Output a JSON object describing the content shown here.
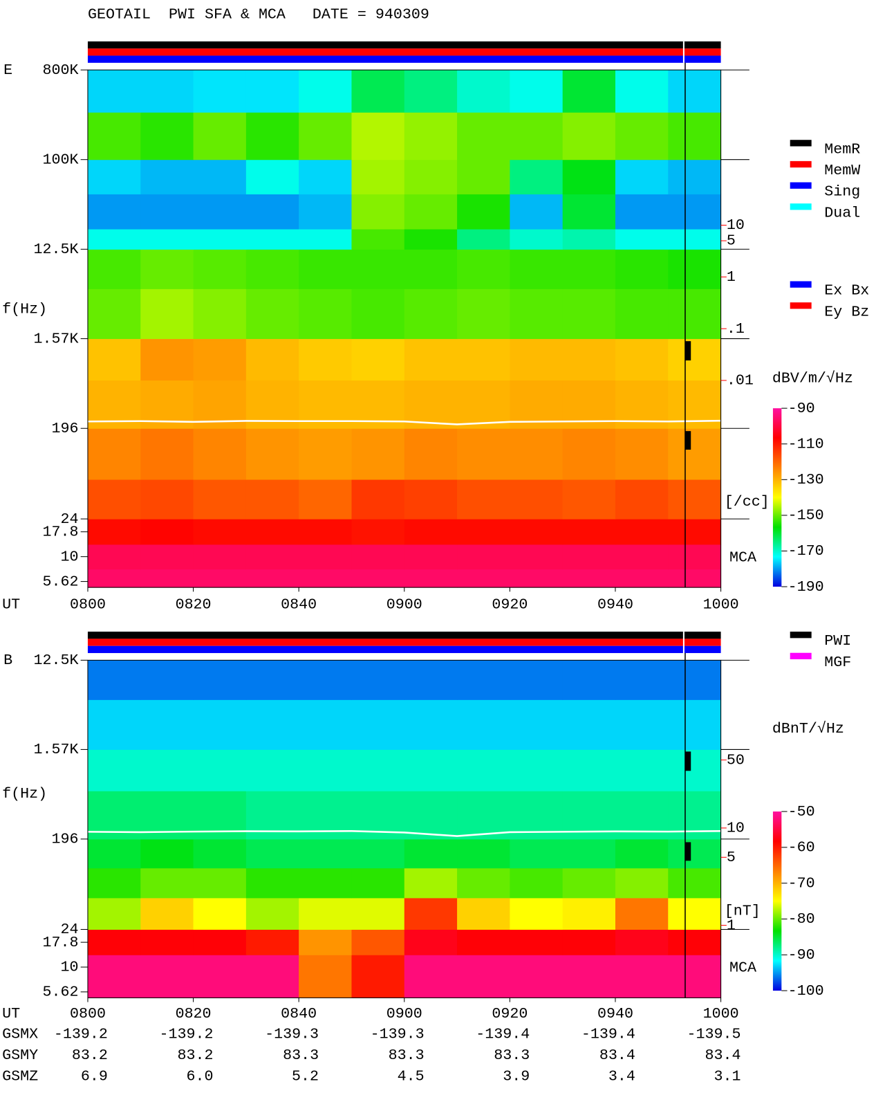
{
  "title": "GEOTAIL  PWI SFA & MCA   DATE = 940309",
  "chart_data": [
    {
      "type": "heatmap",
      "panel_label": "E",
      "ylabel": "f(Hz)",
      "xlabel": "UT",
      "log_y": true,
      "ylim": [
        4.9,
        800000
      ],
      "yticks": [
        {
          "value": 800000,
          "label": "800K"
        },
        {
          "value": 100000,
          "label": "100K"
        },
        {
          "value": 12500,
          "label": "12.5K"
        },
        {
          "value": 1570,
          "label": "1.57K"
        },
        196,
        24,
        17.8,
        10,
        5.62
      ],
      "xlim": [
        480,
        600
      ],
      "xticks": [
        {
          "value": 480,
          "label": "0800"
        },
        {
          "value": 500,
          "label": "0820"
        },
        {
          "value": 520,
          "label": "0840"
        },
        {
          "value": 540,
          "label": "0900"
        },
        {
          "value": 560,
          "label": "0920"
        },
        {
          "value": 580,
          "label": "0940"
        },
        {
          "value": 600,
          "label": "1000"
        }
      ],
      "x_bins": [
        480,
        490,
        500,
        510,
        520,
        530,
        540,
        550,
        560,
        570,
        580,
        590,
        600
      ],
      "y_bins": [
        4.9,
        7.5,
        13.3,
        24,
        60,
        196,
        600,
        1570,
        5000,
        12500,
        20000,
        45000,
        100000,
        300000,
        800000
      ],
      "z": [
        [
          -96,
          -96,
          -96,
          -96,
          -96,
          -96,
          -96,
          -96,
          -96,
          -96,
          -96,
          -96
        ],
        [
          -98,
          -98,
          -98,
          -98,
          -98,
          -98,
          -98,
          -98,
          -98,
          -98,
          -98,
          -98
        ],
        [
          -108,
          -107,
          -108,
          -108,
          -108,
          -109,
          -108,
          -108,
          -108,
          -108,
          -108,
          -108
        ],
        [
          -117,
          -116,
          -118,
          -118,
          -120,
          -114,
          -115,
          -117,
          -117,
          -118,
          -116,
          -118
        ],
        [
          -124,
          -122,
          -124,
          -126,
          -127,
          -126,
          -124,
          -125,
          -125,
          -124,
          -125,
          -127
        ],
        [
          -130,
          -129,
          -128,
          -130,
          -131,
          -131,
          -130,
          -130,
          -129,
          -129,
          -130,
          -131
        ],
        [
          -132,
          -126,
          -127,
          -131,
          -133,
          -134,
          -132,
          -132,
          -131,
          -131,
          -132,
          -134
        ],
        [
          -150,
          -146,
          -148,
          -150,
          -151,
          -152,
          -151,
          -150,
          -151,
          -151,
          -152,
          -152
        ],
        [
          -152,
          -150,
          -151,
          -152,
          -153,
          -153,
          -153,
          -152,
          -153,
          -153,
          -154,
          -155
        ],
        [
          -172,
          -172,
          -172,
          -172,
          -172,
          -152,
          -155,
          -165,
          -170,
          -168,
          -172,
          -172
        ],
        [
          -180,
          -180,
          -180,
          -180,
          -178,
          -148,
          -150,
          -155,
          -178,
          -160,
          -180,
          -180
        ],
        [
          -176,
          -178,
          -178,
          -172,
          -176,
          -146,
          -148,
          -150,
          -165,
          -158,
          -176,
          -178
        ],
        [
          -152,
          -154,
          -150,
          -154,
          -150,
          -145,
          -147,
          -150,
          -150,
          -148,
          -150,
          -152
        ],
        [
          -176,
          -176,
          -175,
          -175,
          -172,
          -162,
          -165,
          -170,
          -172,
          -160,
          -172,
          -176
        ]
      ],
      "zlim": [
        -190,
        -90
      ],
      "zticks": [
        -90,
        -110,
        -130,
        -150,
        -170,
        -190
      ],
      "colorbar_label": "dBV/m/√Hz",
      "colormap": [
        "#0000e0",
        "#00ffff",
        "#00e000",
        "#ffff00",
        "#ff8000",
        "#ff0000",
        "#ff10a0"
      ],
      "line": {
        "x": [
          480,
          490,
          500,
          510,
          520,
          530,
          540,
          550,
          560,
          570,
          580,
          590,
          600
        ],
        "values": [
          230,
          232,
          228,
          233,
          232,
          232,
          230,
          215,
          228,
          230,
          232,
          230,
          234
        ],
        "color": "#ffffff"
      },
      "y2lim": [
        1e-06,
        10000
      ],
      "y2ticks": [
        10,
        5,
        1,
        {
          "value": 0.1,
          "label": ".1"
        },
        {
          "value": 0.01,
          "label": ".01"
        }
      ],
      "y2label": "[/cc]",
      "y2color": "#ff0000",
      "mca_label": "MCA",
      "legend": [
        [
          {
            "name": "MemR",
            "color": "#000000"
          },
          {
            "name": "MemW",
            "color": "#ff0000"
          },
          {
            "name": "Sing",
            "color": "#0000ff"
          },
          {
            "name": "Dual",
            "color": "#00ffff"
          }
        ],
        [
          {
            "name": "Ex Bx",
            "color": "#0000ff"
          },
          {
            "name": "Ey Bz",
            "color": "#ff0000"
          }
        ]
      ]
    },
    {
      "type": "heatmap",
      "panel_label": "B",
      "ylabel": "f(Hz)",
      "xlabel": "UT",
      "log_y": true,
      "ylim": [
        4.9,
        12500
      ],
      "yticks": [
        {
          "value": 12500,
          "label": "12.5K"
        },
        {
          "value": 1570,
          "label": "1.57K"
        },
        196,
        24,
        17.8,
        10,
        5.62
      ],
      "xlim": [
        480,
        600
      ],
      "xticks": [
        {
          "value": 480,
          "label": "0800"
        },
        {
          "value": 500,
          "label": "0820"
        },
        {
          "value": 520,
          "label": "0840"
        },
        {
          "value": 540,
          "label": "0900"
        },
        {
          "value": 560,
          "label": "0920"
        },
        {
          "value": 580,
          "label": "0940"
        },
        {
          "value": 600,
          "label": "1000"
        }
      ],
      "x_bins": [
        480,
        490,
        500,
        510,
        520,
        530,
        540,
        550,
        560,
        570,
        580,
        590,
        600
      ],
      "y_bins": [
        4.9,
        13.3,
        24,
        50,
        100,
        196,
        600,
        1570,
        5000,
        12500
      ],
      "z": [
        [
          -52,
          -52,
          -52,
          -52,
          -66,
          -60,
          -52,
          -52,
          -52,
          -52,
          -52,
          -52
        ],
        [
          -58,
          -58,
          -58,
          -60,
          -68,
          -64,
          -57,
          -58,
          -58,
          -58,
          -57,
          -58
        ],
        [
          -78,
          -72,
          -75,
          -78,
          -76,
          -76,
          -62,
          -72,
          -75,
          -74,
          -66,
          -75
        ],
        [
          -82,
          -80,
          -80,
          -82,
          -82,
          -82,
          -78,
          -80,
          -81,
          -80,
          -79,
          -81
        ],
        [
          -85,
          -84,
          -85,
          -86,
          -86,
          -86,
          -85,
          -85,
          -86,
          -86,
          -85,
          -86
        ],
        [
          -87,
          -87,
          -87,
          -88,
          -88,
          -88,
          -88,
          -88,
          -88,
          -88,
          -88,
          -88
        ],
        [
          -90,
          -90,
          -90,
          -90,
          -90,
          -90,
          -90,
          -90,
          -90,
          -90,
          -90,
          -90
        ],
        [
          -93,
          -93,
          -93,
          -93,
          -93,
          -93,
          -93,
          -93,
          -93,
          -93,
          -93,
          -93
        ],
        [
          -96,
          -96,
          -96,
          -96,
          -96,
          -96,
          -96,
          -96,
          -96,
          -96,
          -96,
          -96
        ]
      ],
      "zlim": [
        -100,
        -50
      ],
      "zticks": [
        -50,
        -60,
        -70,
        -80,
        -90,
        -100
      ],
      "colorbar_label": "dBnT/√Hz",
      "colormap": [
        "#0000e0",
        "#00ffff",
        "#00e000",
        "#ffff00",
        "#ff8000",
        "#ff0000",
        "#ff10a0"
      ],
      "line": {
        "x": [
          480,
          490,
          500,
          510,
          520,
          530,
          540,
          550,
          560,
          570,
          580,
          590,
          600
        ],
        "values": [
          232,
          230,
          233,
          235,
          234,
          236,
          228,
          210,
          230,
          232,
          234,
          233,
          236
        ],
        "color": "#ffffff"
      },
      "y2lim": [
        0.18,
        530
      ],
      "y2ticks": [
        50,
        10,
        5,
        1
      ],
      "y2label": "[nT]",
      "y2color": "#ff0000",
      "mca_label": "MCA",
      "legend": [
        [
          {
            "name": "PWI",
            "color": "#000000"
          },
          {
            "name": "MGF",
            "color": "#ff00ff"
          }
        ]
      ]
    }
  ],
  "orbit": {
    "rows": [
      {
        "label": "GSMX",
        "values": [
          "-139.2",
          "-139.2",
          "-139.3",
          "-139.3",
          "-139.4",
          "-139.4",
          "-139.5"
        ]
      },
      {
        "label": "GSMY",
        "values": [
          "83.2",
          "83.2",
          "83.3",
          "83.3",
          "83.3",
          "83.4",
          "83.4"
        ]
      },
      {
        "label": "GSMZ",
        "values": [
          "6.9",
          "6.0",
          "5.2",
          "4.5",
          "3.9",
          "3.4",
          "3.1"
        ]
      }
    ]
  }
}
